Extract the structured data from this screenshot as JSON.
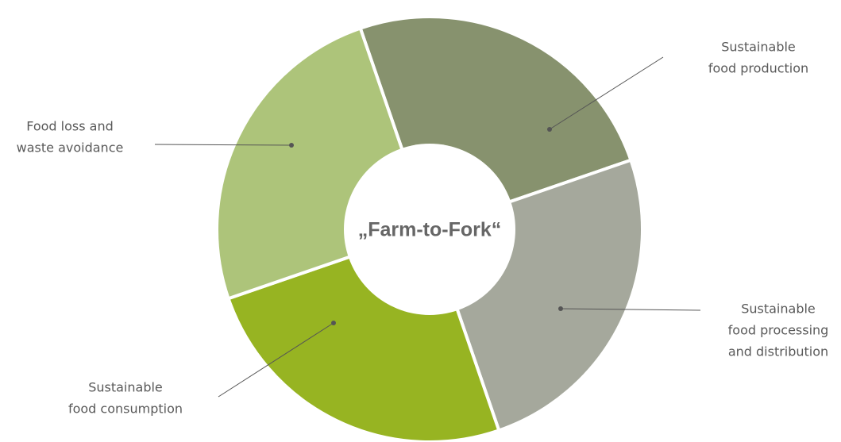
{
  "center_label": "„Farm-to-Fork“",
  "segments": [
    {
      "label": [
        "Sustainable",
        "food production"
      ]
    },
    {
      "label": [
        "Sustainable",
        "food processing",
        "and distribution"
      ]
    },
    {
      "label": [
        "Sustainable",
        "food consumption"
      ]
    },
    {
      "label": [
        "Food loss and",
        "waste avoidance"
      ]
    }
  ]
}
